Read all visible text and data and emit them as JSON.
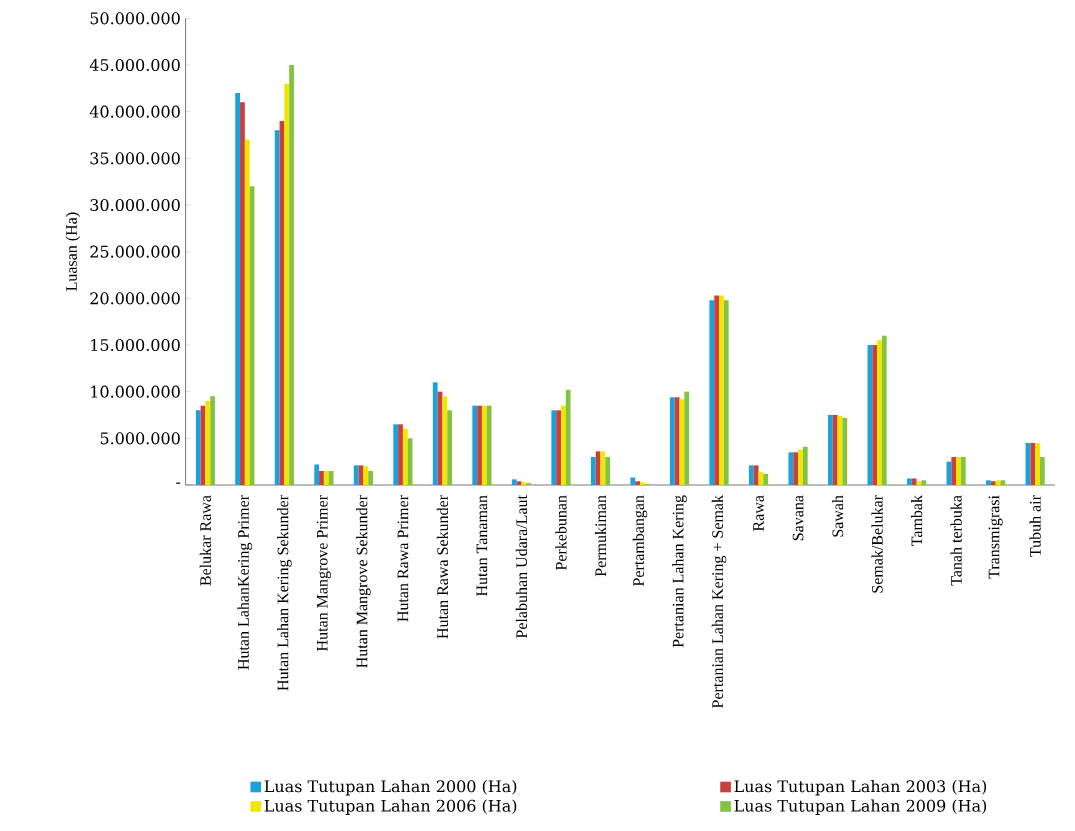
{
  "chart_data": {
    "type": "bar",
    "ylabel": "Luasan (Ha)",
    "categories": [
      "Belukar Rawa",
      "Hutan LahanKering Primer",
      "Hutan Lahan Kering Sekunder",
      "Hutan Mangrove Primer",
      "Hutan Mangrove Sekunder",
      "Hutan Rawa Primer",
      "Hutan Rawa Sekunder",
      "Hutan Tanaman",
      "Pelabuhan Udara/Laut",
      "Perkebunan",
      "Permukiman",
      "Pertambangan",
      "Pertanian Lahan Kering",
      "Pertanian Lahan Kering + Semak",
      "Rawa",
      "Savana",
      "Sawah",
      "Semak/Belukar",
      "Tambak",
      "Tanah terbuka",
      "Transmigrasi",
      "Tubuh air"
    ],
    "series": [
      {
        "name": "Luas Tutupan Lahan 2000 (Ha)",
        "color": "#1ba1dc",
        "values": [
          8000000,
          42000000,
          38000000,
          2200000,
          2100000,
          6500000,
          11000000,
          8500000,
          600000,
          8000000,
          3000000,
          800000,
          9400000,
          19800000,
          2100000,
          3500000,
          7500000,
          15000000,
          700000,
          2500000,
          500000,
          4500000
        ]
      },
      {
        "name": "Luas Tutupan Lahan 2003 (Ha)",
        "color": "#c8413f",
        "values": [
          8500000,
          41000000,
          39000000,
          1500000,
          2100000,
          6500000,
          10000000,
          8500000,
          400000,
          8000000,
          3600000,
          400000,
          9400000,
          20300000,
          2100000,
          3500000,
          7500000,
          15000000,
          700000,
          3000000,
          400000,
          4500000
        ]
      },
      {
        "name": "Luas Tutupan Lahan 2006 (Ha)",
        "color": "#f2e600",
        "values": [
          9000000,
          37000000,
          43000000,
          1500000,
          2000000,
          6000000,
          9500000,
          8500000,
          300000,
          8500000,
          3600000,
          300000,
          9200000,
          20300000,
          1400000,
          3800000,
          7400000,
          15500000,
          400000,
          3000000,
          500000,
          4500000
        ]
      },
      {
        "name": "Luas Tutupan Lahan 2009 (Ha)",
        "color": "#84c341",
        "values": [
          9500000,
          32000000,
          45000000,
          1500000,
          1500000,
          5000000,
          8000000,
          8500000,
          200000,
          10200000,
          3000000,
          100000,
          10000000,
          19800000,
          1200000,
          4100000,
          7200000,
          16000000,
          500000,
          3000000,
          500000,
          3000000
        ]
      }
    ],
    "ylim": [
      0,
      50000000
    ],
    "yticks": [
      {
        "value": 0,
        "label": "-"
      },
      {
        "value": 5000000,
        "label": "5.000.000"
      },
      {
        "value": 10000000,
        "label": "10.000.000"
      },
      {
        "value": 15000000,
        "label": "15.000.000"
      },
      {
        "value": 20000000,
        "label": "20.000.000"
      },
      {
        "value": 25000000,
        "label": "25.000.000"
      },
      {
        "value": 30000000,
        "label": "30.000.000"
      },
      {
        "value": 35000000,
        "label": "35.000.000"
      },
      {
        "value": 40000000,
        "label": "40.000.000"
      },
      {
        "value": 45000000,
        "label": "45.000.000"
      },
      {
        "value": 50000000,
        "label": "50.000.000"
      }
    ],
    "legend": "bottom",
    "grid": false
  }
}
